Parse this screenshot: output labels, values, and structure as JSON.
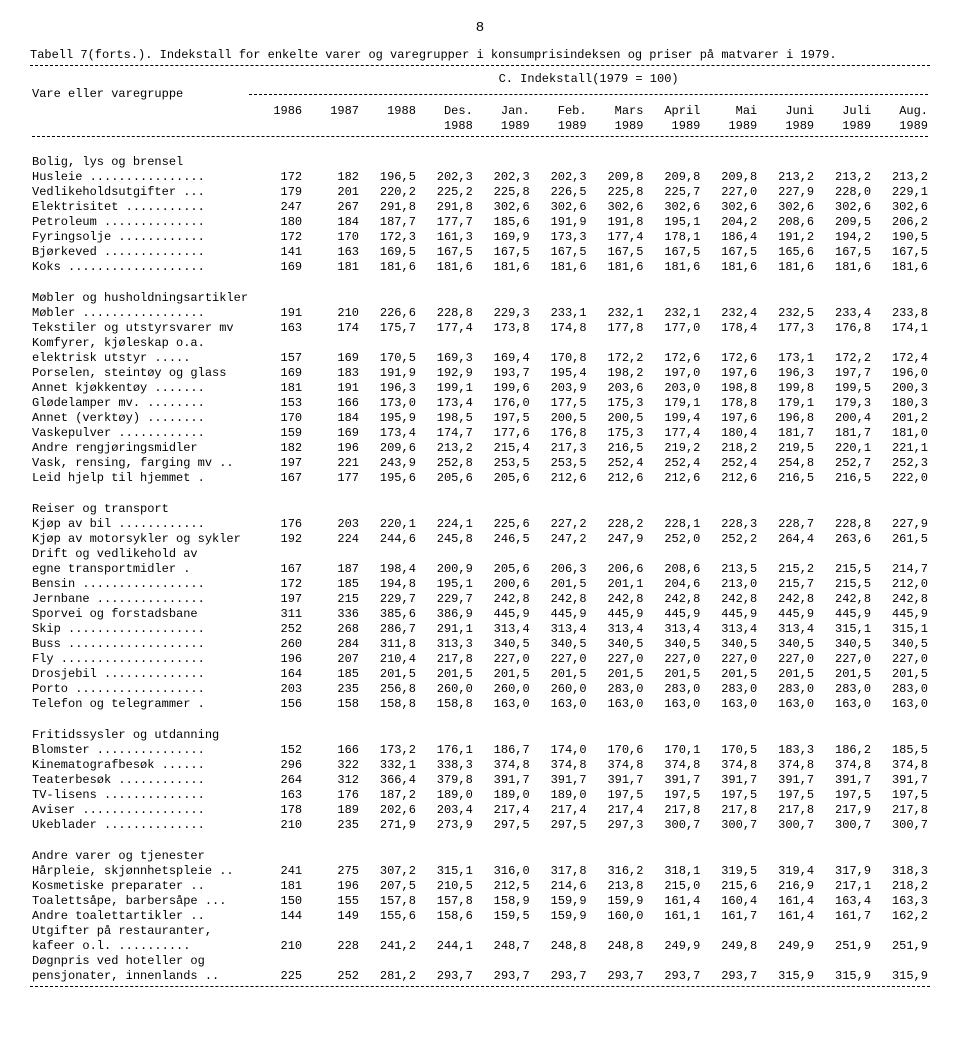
{
  "page_number": "8",
  "title": "Tabell 7(forts.). Indekstall for enkelte varer og varegrupper i konsumprisindeksen og priser på matvarer i 1979.",
  "subtitle_c": "C. Indekstall(1979 = 100)",
  "subtitle_left": "Vare eller varegruppe",
  "header_row1": [
    "1986",
    "1987",
    "1988",
    "Des.",
    "Jan.",
    "Feb.",
    "Mars",
    "April",
    "Mai",
    "Juni",
    "Juli",
    "Aug."
  ],
  "header_row2": [
    "",
    "",
    "",
    "1988",
    "1989",
    "1989",
    "1989",
    "1989",
    "1989",
    "1989",
    "1989",
    "1989"
  ],
  "sections": [
    {
      "title": "Bolig, lys og brensel",
      "rows": [
        {
          "label": "Husleie ................",
          "v": [
            "172",
            "182",
            "196,5",
            "202,3",
            "202,3",
            "202,3",
            "209,8",
            "209,8",
            "209,8",
            "213,2",
            "213,2",
            "213,2"
          ]
        },
        {
          "label": "Vedlikeholdsutgifter ...",
          "v": [
            "179",
            "201",
            "220,2",
            "225,2",
            "225,8",
            "226,5",
            "225,8",
            "225,7",
            "227,0",
            "227,9",
            "228,0",
            "229,1"
          ]
        },
        {
          "label": "Elektrisitet ...........",
          "v": [
            "247",
            "267",
            "291,8",
            "291,8",
            "302,6",
            "302,6",
            "302,6",
            "302,6",
            "302,6",
            "302,6",
            "302,6",
            "302,6"
          ]
        },
        {
          "label": "Petroleum ..............",
          "v": [
            "180",
            "184",
            "187,7",
            "177,7",
            "185,6",
            "191,9",
            "191,8",
            "195,1",
            "204,2",
            "208,6",
            "209,5",
            "206,2"
          ]
        },
        {
          "label": "Fyringsolje ............",
          "v": [
            "172",
            "170",
            "172,3",
            "161,3",
            "169,9",
            "173,3",
            "177,4",
            "178,1",
            "186,4",
            "191,2",
            "194,2",
            "190,5"
          ]
        },
        {
          "label": "Bjørkeved ..............",
          "v": [
            "141",
            "163",
            "169,5",
            "167,5",
            "167,5",
            "167,5",
            "167,5",
            "167,5",
            "167,5",
            "165,6",
            "167,5",
            "167,5"
          ]
        },
        {
          "label": "Koks ...................",
          "v": [
            "169",
            "181",
            "181,6",
            "181,6",
            "181,6",
            "181,6",
            "181,6",
            "181,6",
            "181,6",
            "181,6",
            "181,6",
            "181,6"
          ]
        }
      ]
    },
    {
      "title": "Møbler og husholdningsartikler",
      "rows": [
        {
          "label": "Møbler .................",
          "v": [
            "191",
            "210",
            "226,6",
            "228,8",
            "229,3",
            "233,1",
            "232,1",
            "232,1",
            "232,4",
            "232,5",
            "233,4",
            "233,8"
          ]
        },
        {
          "label": "Tekstiler og utstyrsvarer mv",
          "v": [
            "163",
            "174",
            "175,7",
            "177,4",
            "173,8",
            "174,8",
            "177,8",
            "177,0",
            "178,4",
            "177,3",
            "176,8",
            "174,1"
          ]
        },
        {
          "label": "Komfyrer, kjøleskap o.a.",
          "v": [
            "",
            "",
            "",
            "",
            "",
            "",
            "",
            "",
            "",
            "",
            "",
            ""
          ]
        },
        {
          "label": "  elektrisk utstyr .....",
          "v": [
            "157",
            "169",
            "170,5",
            "169,3",
            "169,4",
            "170,8",
            "172,2",
            "172,6",
            "172,6",
            "173,1",
            "172,2",
            "172,4"
          ]
        },
        {
          "label": "Porselen, steintøy og glass",
          "v": [
            "169",
            "183",
            "191,9",
            "192,9",
            "193,7",
            "195,4",
            "198,2",
            "197,0",
            "197,6",
            "196,3",
            "197,7",
            "196,0"
          ]
        },
        {
          "label": "Annet kjøkkentøy .......",
          "v": [
            "181",
            "191",
            "196,3",
            "199,1",
            "199,6",
            "203,9",
            "203,6",
            "203,0",
            "198,8",
            "199,8",
            "199,5",
            "200,3"
          ]
        },
        {
          "label": "Glødelamper mv. ........",
          "v": [
            "153",
            "166",
            "173,0",
            "173,4",
            "176,0",
            "177,5",
            "175,3",
            "179,1",
            "178,8",
            "179,1",
            "179,3",
            "180,3"
          ]
        },
        {
          "label": "Annet (verktøy) ........",
          "v": [
            "170",
            "184",
            "195,9",
            "198,5",
            "197,5",
            "200,5",
            "200,5",
            "199,4",
            "197,6",
            "196,8",
            "200,4",
            "201,2"
          ]
        },
        {
          "label": "Vaskepulver ............",
          "v": [
            "159",
            "169",
            "173,4",
            "174,7",
            "177,6",
            "176,8",
            "175,3",
            "177,4",
            "180,4",
            "181,7",
            "181,7",
            "181,0"
          ]
        },
        {
          "label": "Andre rengjøringsmidler ",
          "v": [
            "182",
            "196",
            "209,6",
            "213,2",
            "215,4",
            "217,3",
            "216,5",
            "219,2",
            "218,2",
            "219,5",
            "220,1",
            "221,1"
          ]
        },
        {
          "label": "Vask, rensing, farging mv ..",
          "v": [
            "197",
            "221",
            "243,9",
            "252,8",
            "253,5",
            "253,5",
            "252,4",
            "252,4",
            "252,4",
            "254,8",
            "252,7",
            "252,3"
          ]
        },
        {
          "label": "Leid hjelp til hjemmet .",
          "v": [
            "167",
            "177",
            "195,6",
            "205,6",
            "205,6",
            "212,6",
            "212,6",
            "212,6",
            "212,6",
            "216,5",
            "216,5",
            "222,0"
          ]
        }
      ]
    },
    {
      "title": "Reiser og transport",
      "rows": [
        {
          "label": "Kjøp av bil ............",
          "v": [
            "176",
            "203",
            "220,1",
            "224,1",
            "225,6",
            "227,2",
            "228,2",
            "228,1",
            "228,3",
            "228,7",
            "228,8",
            "227,9"
          ]
        },
        {
          "label": "Kjøp av motorsykler og sykler",
          "v": [
            "192",
            "224",
            "244,6",
            "245,8",
            "246,5",
            "247,2",
            "247,9",
            "252,0",
            "252,2",
            "264,4",
            "263,6",
            "261,5"
          ]
        },
        {
          "label": "Drift og vedlikehold av",
          "v": [
            "",
            "",
            "",
            "",
            "",
            "",
            "",
            "",
            "",
            "",
            "",
            ""
          ]
        },
        {
          "label": "  egne transportmidler .",
          "v": [
            "167",
            "187",
            "198,4",
            "200,9",
            "205,6",
            "206,3",
            "206,6",
            "208,6",
            "213,5",
            "215,2",
            "215,5",
            "214,7"
          ]
        },
        {
          "label": "Bensin .................",
          "v": [
            "172",
            "185",
            "194,8",
            "195,1",
            "200,6",
            "201,5",
            "201,1",
            "204,6",
            "213,0",
            "215,7",
            "215,5",
            "212,0"
          ]
        },
        {
          "label": "Jernbane ...............",
          "v": [
            "197",
            "215",
            "229,7",
            "229,7",
            "242,8",
            "242,8",
            "242,8",
            "242,8",
            "242,8",
            "242,8",
            "242,8",
            "242,8"
          ]
        },
        {
          "label": "Sporvei og forstadsbane ",
          "v": [
            "311",
            "336",
            "385,6",
            "386,9",
            "445,9",
            "445,9",
            "445,9",
            "445,9",
            "445,9",
            "445,9",
            "445,9",
            "445,9"
          ]
        },
        {
          "label": "Skip ...................",
          "v": [
            "252",
            "268",
            "286,7",
            "291,1",
            "313,4",
            "313,4",
            "313,4",
            "313,4",
            "313,4",
            "313,4",
            "315,1",
            "315,1"
          ]
        },
        {
          "label": "Buss ...................",
          "v": [
            "260",
            "284",
            "311,8",
            "313,3",
            "340,5",
            "340,5",
            "340,5",
            "340,5",
            "340,5",
            "340,5",
            "340,5",
            "340,5"
          ]
        },
        {
          "label": "Fly ....................",
          "v": [
            "196",
            "207",
            "210,4",
            "217,8",
            "227,0",
            "227,0",
            "227,0",
            "227,0",
            "227,0",
            "227,0",
            "227,0",
            "227,0"
          ]
        },
        {
          "label": "Drosjebil ..............",
          "v": [
            "164",
            "185",
            "201,5",
            "201,5",
            "201,5",
            "201,5",
            "201,5",
            "201,5",
            "201,5",
            "201,5",
            "201,5",
            "201,5"
          ]
        },
        {
          "label": "Porto ..................",
          "v": [
            "203",
            "235",
            "256,8",
            "260,0",
            "260,0",
            "260,0",
            "283,0",
            "283,0",
            "283,0",
            "283,0",
            "283,0",
            "283,0"
          ]
        },
        {
          "label": "Telefon og telegrammer .",
          "v": [
            "156",
            "158",
            "158,8",
            "158,8",
            "163,0",
            "163,0",
            "163,0",
            "163,0",
            "163,0",
            "163,0",
            "163,0",
            "163,0"
          ]
        }
      ]
    },
    {
      "title": "Fritidssysler og utdanning",
      "rows": [
        {
          "label": "Blomster ...............",
          "v": [
            "152",
            "166",
            "173,2",
            "176,1",
            "186,7",
            "174,0",
            "170,6",
            "170,1",
            "170,5",
            "183,3",
            "186,2",
            "185,5"
          ]
        },
        {
          "label": "Kinematografbesøk ......",
          "v": [
            "296",
            "322",
            "332,1",
            "338,3",
            "374,8",
            "374,8",
            "374,8",
            "374,8",
            "374,8",
            "374,8",
            "374,8",
            "374,8"
          ]
        },
        {
          "label": "Teaterbesøk ............",
          "v": [
            "264",
            "312",
            "366,4",
            "379,8",
            "391,7",
            "391,7",
            "391,7",
            "391,7",
            "391,7",
            "391,7",
            "391,7",
            "391,7"
          ]
        },
        {
          "label": "TV-lisens ..............",
          "v": [
            "163",
            "176",
            "187,2",
            "189,0",
            "189,0",
            "189,0",
            "197,5",
            "197,5",
            "197,5",
            "197,5",
            "197,5",
            "197,5"
          ]
        },
        {
          "label": "Aviser .................",
          "v": [
            "178",
            "189",
            "202,6",
            "203,4",
            "217,4",
            "217,4",
            "217,4",
            "217,8",
            "217,8",
            "217,8",
            "217,9",
            "217,8"
          ]
        },
        {
          "label": "Ukeblader ..............",
          "v": [
            "210",
            "235",
            "271,9",
            "273,9",
            "297,5",
            "297,5",
            "297,3",
            "300,7",
            "300,7",
            "300,7",
            "300,7",
            "300,7"
          ]
        }
      ]
    },
    {
      "title": "Andre varer og tjenester",
      "rows": [
        {
          "label": "Hårpleie, skjønnhetspleie ..",
          "v": [
            "241",
            "275",
            "307,2",
            "315,1",
            "316,0",
            "317,8",
            "316,2",
            "318,1",
            "319,5",
            "319,4",
            "317,9",
            "318,3"
          ]
        },
        {
          "label": "Kosmetiske preparater ..",
          "v": [
            "181",
            "196",
            "207,5",
            "210,5",
            "212,5",
            "214,6",
            "213,8",
            "215,0",
            "215,6",
            "216,9",
            "217,1",
            "218,2"
          ]
        },
        {
          "label": "Toalettsåpe, barbersåpe ...",
          "v": [
            "150",
            "155",
            "157,8",
            "157,8",
            "158,9",
            "159,9",
            "159,9",
            "161,4",
            "160,4",
            "161,4",
            "163,4",
            "163,3"
          ]
        },
        {
          "label": "Andre toalettartikler ..",
          "v": [
            "144",
            "149",
            "155,6",
            "158,6",
            "159,5",
            "159,9",
            "160,0",
            "161,1",
            "161,7",
            "161,4",
            "161,7",
            "162,2"
          ]
        },
        {
          "label": "Utgifter på restauranter,",
          "v": [
            "",
            "",
            "",
            "",
            "",
            "",
            "",
            "",
            "",
            "",
            "",
            ""
          ]
        },
        {
          "label": "  kafeer o.l. ..........",
          "v": [
            "210",
            "228",
            "241,2",
            "244,1",
            "248,7",
            "248,8",
            "248,8",
            "249,9",
            "249,8",
            "249,9",
            "251,9",
            "251,9"
          ]
        },
        {
          "label": "Døgnpris ved hoteller og",
          "v": [
            "",
            "",
            "",
            "",
            "",
            "",
            "",
            "",
            "",
            "",
            "",
            ""
          ]
        },
        {
          "label": "  pensjonater, innenlands ..",
          "v": [
            "225",
            "252",
            "281,2",
            "293,7",
            "293,7",
            "293,7",
            "293,7",
            "293,7",
            "293,7",
            "315,9",
            "315,9",
            "315,9"
          ]
        }
      ]
    }
  ]
}
